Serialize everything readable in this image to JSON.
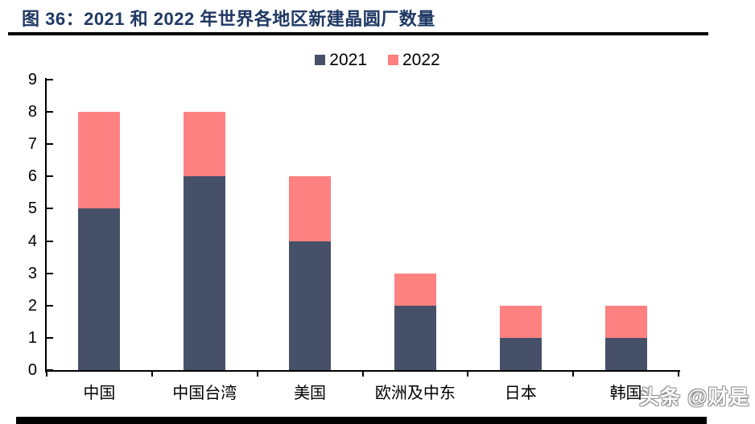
{
  "header": {
    "title": "图 36：2021 和 2022 年世界各地区新建晶圆厂数量",
    "title_color": "#1F3864"
  },
  "watermark": {
    "text": "头条 @财是"
  },
  "chart_data": {
    "type": "bar",
    "stacked": true,
    "title": "图 36：2021 和 2022 年世界各地区新建晶圆厂数量",
    "categories": [
      "中国",
      "中国台湾",
      "美国",
      "欧洲及中东",
      "日本",
      "韩国"
    ],
    "series": [
      {
        "name": "2021",
        "color": "#475069",
        "values": [
          5,
          6,
          4,
          2,
          1,
          1
        ]
      },
      {
        "name": "2022",
        "color": "#FE8181",
        "values": [
          3,
          2,
          2,
          1,
          1,
          1
        ]
      }
    ],
    "xlabel": "",
    "ylabel": "",
    "ylim": [
      0,
      9
    ],
    "yticks": [
      0,
      1,
      2,
      3,
      4,
      5,
      6,
      7,
      8,
      9
    ],
    "grid": false,
    "legend_position": "top-center",
    "axis_color": "#000000",
    "background_color": "#FFFFFF"
  }
}
